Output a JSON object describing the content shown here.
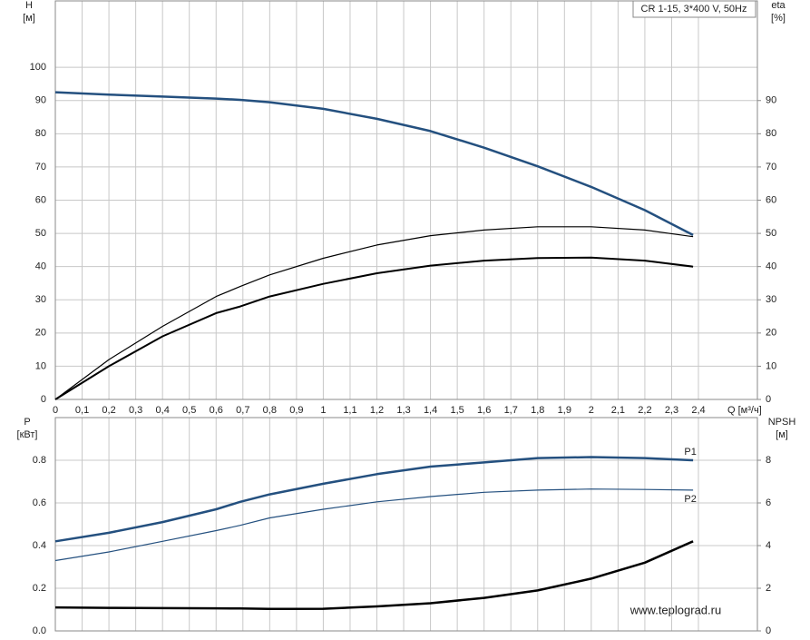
{
  "chart_data": [
    {
      "type": "line",
      "title": "CR 1-15, 3*400 V, 50Hz",
      "ylabel": [
        "H",
        "[м]"
      ],
      "y2label": [
        "eta",
        "[%]"
      ],
      "xlabel": "Q [м³/ч]",
      "x": [
        0,
        0.2,
        0.4,
        0.6,
        0.69,
        0.8,
        1.0,
        1.2,
        1.4,
        1.6,
        1.8,
        2.0,
        2.2,
        2.38
      ],
      "series": [
        {
          "color": "#24507f",
          "values": [
            92.5,
            91.8,
            91.2,
            90.6,
            90.2,
            89.5,
            87.5,
            84.5,
            80.8,
            75.8,
            70.2,
            64,
            57,
            49.5
          ]
        },
        {
          "color": "#000000",
          "axis": "y2",
          "values": [
            0,
            12,
            22,
            31,
            34,
            37.5,
            42.5,
            46.5,
            49.3,
            51,
            52,
            52,
            51,
            49
          ]
        },
        {
          "color": "#000000",
          "axis": "y2",
          "values": [
            0,
            10,
            19,
            26,
            28,
            31,
            34.8,
            38,
            40.3,
            41.8,
            42.6,
            42.7,
            41.8,
            40
          ]
        }
      ],
      "xlim": [
        0,
        2.62
      ],
      "xticks": [
        0,
        {
          "value": 0.1,
          "label": "0,1"
        },
        {
          "value": 0.2,
          "label": "0,2"
        },
        {
          "value": 0.3,
          "label": "0,3"
        },
        {
          "value": 0.4,
          "label": "0,4"
        },
        {
          "value": 0.5,
          "label": "0,5"
        },
        {
          "value": 0.6,
          "label": "0,6"
        },
        {
          "value": 0.7,
          "label": "0,7"
        },
        {
          "value": 0.8,
          "label": "0,8"
        },
        {
          "value": 0.9,
          "label": "0,9"
        },
        1,
        {
          "value": 1.1,
          "label": "1,1"
        },
        {
          "value": 1.2,
          "label": "1,2"
        },
        {
          "value": 1.3,
          "label": "1,3"
        },
        {
          "value": 1.4,
          "label": "1,4"
        },
        {
          "value": 1.5,
          "label": "1,5"
        },
        {
          "value": 1.6,
          "label": "1,6"
        },
        {
          "value": 1.7,
          "label": "1,7"
        },
        {
          "value": 1.8,
          "label": "1,8"
        },
        {
          "value": 1.9,
          "label": "1,9"
        },
        2,
        {
          "value": 2.1,
          "label": "2,1"
        },
        {
          "value": 2.2,
          "label": "2,2"
        },
        {
          "value": 2.3,
          "label": "2,3"
        },
        {
          "value": 2.4,
          "label": "2,4"
        }
      ],
      "ylim": [
        0,
        120
      ],
      "yticks": [
        0,
        10,
        20,
        30,
        40,
        50,
        60,
        70,
        80,
        90,
        100
      ],
      "y2lim": [
        0,
        120
      ],
      "y2ticks": [
        0,
        10,
        20,
        30,
        40,
        50,
        60,
        70,
        80,
        90
      ],
      "grid": true
    },
    {
      "type": "line",
      "ylabel": [
        "P",
        "[кВт]"
      ],
      "y2label": [
        "NPSH",
        "[м]"
      ],
      "annotation": "www.teplograd.ru",
      "x": [
        0,
        0.2,
        0.4,
        0.6,
        0.69,
        0.8,
        1.0,
        1.2,
        1.4,
        1.6,
        1.8,
        2.0,
        2.2,
        2.38
      ],
      "series": [
        {
          "name": "P1",
          "color": "#24507f",
          "values": [
            0.42,
            0.46,
            0.51,
            0.57,
            0.605,
            0.64,
            0.69,
            0.735,
            0.77,
            0.79,
            0.81,
            0.815,
            0.81,
            0.8
          ]
        },
        {
          "name": "P2",
          "color": "#24507f",
          "values": [
            0.33,
            0.37,
            0.42,
            0.47,
            0.495,
            0.53,
            0.57,
            0.605,
            0.63,
            0.65,
            0.66,
            0.665,
            0.663,
            0.66
          ]
        },
        {
          "color": "#000000",
          "axis": "y2",
          "values": [
            1.1,
            1.08,
            1.07,
            1.06,
            1.05,
            1.03,
            1.04,
            1.15,
            1.3,
            1.55,
            1.9,
            2.45,
            3.2,
            4.2
          ]
        }
      ],
      "xlim": [
        0,
        2.62
      ],
      "ylim": [
        0,
        1.0
      ],
      "yticks": [
        {
          "value": 0,
          "label": "0.0"
        },
        0.2,
        0.4,
        0.6,
        0.8
      ],
      "y2lim": [
        0,
        10
      ],
      "y2ticks": [
        0,
        2,
        4,
        6,
        8
      ],
      "grid": true
    }
  ]
}
